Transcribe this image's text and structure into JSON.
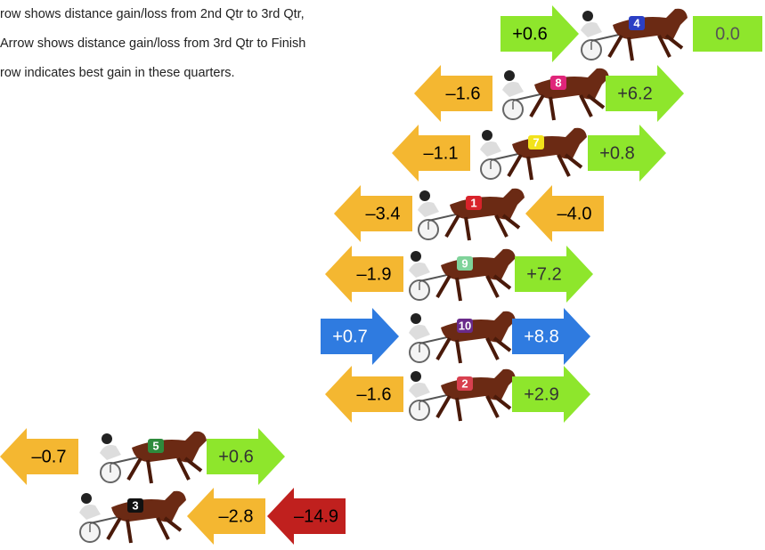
{
  "legend": [
    "row shows distance gain/loss from 2nd Qtr to 3rd Qtr,",
    "Arrow shows distance gain/loss from 3rd Qtr to Finish",
    "row indicates best gain in these quarters."
  ],
  "horses": [
    {
      "number": "4",
      "cloth_color": "#2b3fc4",
      "arrows": [
        {
          "label": "+0.6",
          "direction": "right",
          "color": "#8ee62c",
          "text_color": "#000000"
        },
        {
          "label": "0.0",
          "direction": "none",
          "color": "#8ee62c",
          "text_color": "#555555"
        }
      ]
    },
    {
      "number": "8",
      "cloth_color": "#e0257a",
      "arrows": [
        {
          "label": "–1.6",
          "direction": "left",
          "color": "#f4b731",
          "text_color": "#000000"
        },
        {
          "label": "+6.2",
          "direction": "right",
          "color": "#8ee62c",
          "text_color": "#333333"
        }
      ]
    },
    {
      "number": "7",
      "cloth_color": "#f2e21b",
      "arrows": [
        {
          "label": "–1.1",
          "direction": "left",
          "color": "#f4b731",
          "text_color": "#000000"
        },
        {
          "label": "+0.8",
          "direction": "right",
          "color": "#8ee62c",
          "text_color": "#333333"
        }
      ]
    },
    {
      "number": "1",
      "cloth_color": "#d8232a",
      "arrows": [
        {
          "label": "–3.4",
          "direction": "left",
          "color": "#f4b731",
          "text_color": "#000000"
        },
        {
          "label": "–4.0",
          "direction": "left",
          "color": "#f4b731",
          "text_color": "#000000"
        }
      ]
    },
    {
      "number": "9",
      "cloth_color": "#7fd39a",
      "arrows": [
        {
          "label": "–1.9",
          "direction": "left",
          "color": "#f4b731",
          "text_color": "#000000"
        },
        {
          "label": "+7.2",
          "direction": "right",
          "color": "#8ee62c",
          "text_color": "#333333"
        }
      ]
    },
    {
      "number": "10",
      "cloth_color": "#6a2a8a",
      "arrows": [
        {
          "label": "+0.7",
          "direction": "right",
          "color": "#2f7be0",
          "text_color": "#ffffff"
        },
        {
          "label": "+8.8",
          "direction": "right",
          "color": "#2f7be0",
          "text_color": "#ffffff"
        }
      ]
    },
    {
      "number": "2",
      "cloth_color": "#d8404f",
      "arrows": [
        {
          "label": "–1.6",
          "direction": "left",
          "color": "#f4b731",
          "text_color": "#000000"
        },
        {
          "label": "+2.9",
          "direction": "right",
          "color": "#8ee62c",
          "text_color": "#333333"
        }
      ]
    },
    {
      "number": "5",
      "cloth_color": "#2e8a3c",
      "arrows": [
        {
          "label": "–0.7",
          "direction": "left",
          "color": "#f4b731",
          "text_color": "#000000"
        },
        {
          "label": "+0.6",
          "direction": "right",
          "color": "#8ee62c",
          "text_color": "#333333"
        }
      ]
    },
    {
      "number": "3",
      "cloth_color": "#111111",
      "arrows": [
        {
          "label": "–2.8",
          "direction": "left",
          "color": "#f4b731",
          "text_color": "#000000"
        },
        {
          "label": "–14.9",
          "direction": "left",
          "color": "#c0201e",
          "text_color": "#000000"
        }
      ]
    }
  ]
}
